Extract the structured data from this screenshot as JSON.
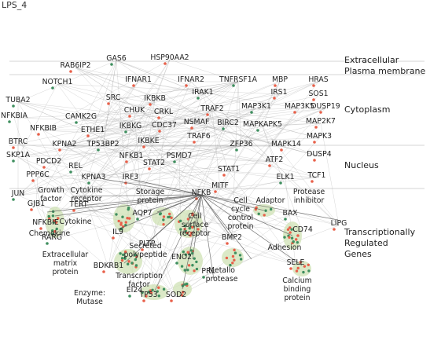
{
  "title": "LPS_4",
  "layers": [
    {
      "name": "layer-extracellular",
      "text": "Extracellular"
    },
    {
      "name": "layer-plasma-membrane",
      "text": "Plasma membrane"
    },
    {
      "name": "layer-cytoplasm",
      "text": "Cytoplasm"
    },
    {
      "name": "layer-nucleus",
      "text": "Nucleus"
    },
    {
      "name": "layer-transcriptionally-regulated",
      "text": "Transcriptionally"
    },
    {
      "name": "layer-regulated",
      "text": "Regulated"
    },
    {
      "name": "layer-genes",
      "text": "Genes"
    }
  ],
  "genes": [
    "GAS6",
    "HSP90AA2",
    "RAB6IP2",
    "NOTCH1",
    "IFNAR1",
    "IFNAR2",
    "TNFRSF1A",
    "MBP",
    "HRAS",
    "TUBA2",
    "SRC",
    "IKBKB",
    "IRAK1",
    "IRS1",
    "SOS1",
    "CAMK2G",
    "CRKL",
    "TRAF2",
    "MAP3K1",
    "MAP3K5",
    "DUSP19",
    "NFKBIA",
    "NFKBIB",
    "CHUK",
    "BIRC2",
    "MAP2K7",
    "ETHE1",
    "IKBKG",
    "CDC37",
    "NSMAF",
    "MAPKAPK5",
    "BTRC",
    "KPNA2",
    "TP53BP2",
    "IKBKE",
    "TRAF6",
    "ZFP36",
    "MAPK14",
    "MAPK3",
    "SKP1A",
    "PDCD2",
    "NFKB1",
    "PSMD7",
    "ATF2",
    "DUSP4",
    "REL",
    "STAT2",
    "PPP6C",
    "KPNA3",
    "IRF3",
    "STAT1",
    "ELK1",
    "TCF1",
    "MITF",
    "JUN",
    "GJB1",
    "NFKBIE",
    "RARG",
    "TERT",
    "IL9",
    "AQP7",
    "PLTP",
    "BMP2",
    "BAX",
    "CD74",
    "LIPG",
    "ENO2",
    "SELE",
    "BDKRB1",
    "PRL",
    "TP53",
    "SOD2",
    "EI24",
    "NFKB"
  ],
  "categories": [
    "Growth factor",
    "Cytokine receptor",
    "Storage protein",
    "Cell cycle control protein",
    "Adaptor",
    "Protease inhibitor",
    "Cytokine",
    "Chemokine",
    "Cell surface receptor",
    "Secreted polypeptide",
    "Extracellular matrix protein",
    "Adhesion",
    "Metallo protease",
    "Transcription factor",
    "Enzyme: Mutase",
    "Calcium binding protein"
  ],
  "colors": {
    "edge": "#9a9a9a",
    "node_red": "#e8604a",
    "node_green": "#3f8f5f",
    "cluster": "#cfe2b4",
    "layer_line": "#c8c8c8"
  }
}
